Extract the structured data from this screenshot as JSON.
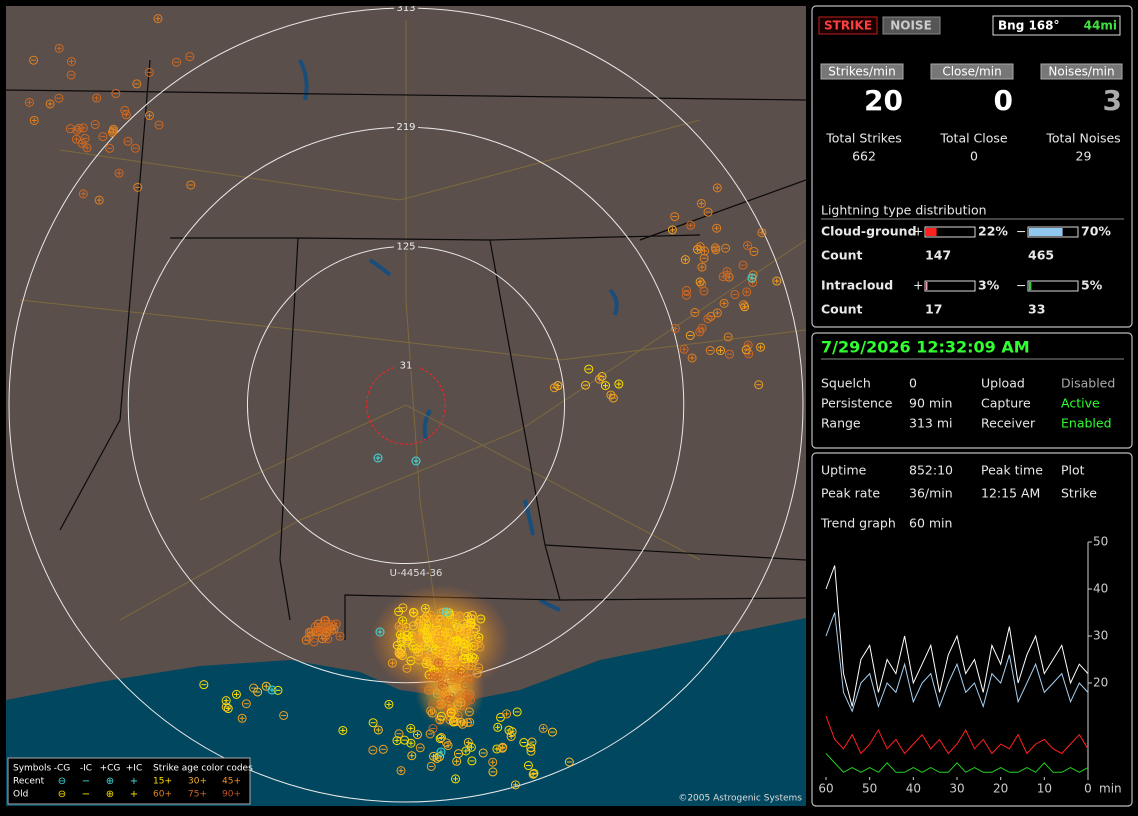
{
  "map": {
    "rings": [
      313,
      219,
      125,
      31
    ],
    "station_label": "U-4454-36",
    "legend": {
      "symbols_title": "Symbols",
      "columns": [
        "-CG",
        "-IC",
        "+CG",
        "+IC"
      ],
      "age_title": "Strike age color codes",
      "rows": [
        {
          "label": "Recent",
          "ages": [
            "15+",
            "30+",
            "45+"
          ]
        },
        {
          "label": "Old",
          "ages": [
            "60+",
            "75+",
            "90+"
          ]
        }
      ]
    },
    "copyright": "©2005 Astrogenic Systems"
  },
  "header": {
    "strike_button": "STRIKE",
    "noise_button": "NOISE",
    "bearing": "Bng 168°",
    "distance": "44mi"
  },
  "rates": [
    {
      "label": "Strikes/min",
      "value": 20,
      "total_label": "Total Strikes",
      "total": 662
    },
    {
      "label": "Close/min",
      "value": 0,
      "total_label": "Total Close",
      "total": 0
    },
    {
      "label": "Noises/min",
      "value": 3,
      "total_label": "Total Noises",
      "total": 29
    }
  ],
  "distribution": {
    "title": "Lightning type distribution",
    "rows": [
      {
        "label": "Cloud-ground",
        "pos_sign": "+",
        "pos": {
          "value": 22,
          "label": "22%"
        },
        "neg_sign": "−",
        "neg": {
          "value": 70,
          "label": "70%"
        },
        "count_label": "Count",
        "pos_count": 147,
        "neg_count": 465
      },
      {
        "label": "Intracloud",
        "pos_sign": "+",
        "pos": {
          "value": 3,
          "label": "3%"
        },
        "neg_sign": "−",
        "neg": {
          "value": 5,
          "label": "5%"
        },
        "count_label": "Count",
        "pos_count": 17,
        "neg_count": 33
      }
    ]
  },
  "status": {
    "datetime": "7/29/2026 12:32:09 AM",
    "rows": [
      [
        "Squelch",
        "0",
        "Upload",
        "Disabled"
      ],
      [
        "Persistence",
        "90 min",
        "Capture",
        "Active"
      ],
      [
        "Range",
        "313 mi",
        "Receiver",
        "Enabled"
      ]
    ]
  },
  "stats": {
    "rows": [
      [
        "Uptime",
        "852:10",
        "Peak time",
        "Plot"
      ],
      [
        "Peak rate",
        "36/min",
        "12:15 AM",
        "Strike"
      ]
    ],
    "trend_label": "Trend graph",
    "trend_value": "60 min"
  },
  "trend": {
    "type": "line",
    "x": [
      60,
      58,
      56,
      54,
      52,
      50,
      48,
      46,
      44,
      42,
      40,
      38,
      36,
      34,
      32,
      30,
      28,
      26,
      24,
      22,
      20,
      18,
      16,
      14,
      12,
      10,
      8,
      6,
      4,
      2,
      0
    ],
    "xlim": [
      60,
      0
    ],
    "xticks": [
      60,
      50,
      40,
      30,
      20,
      10,
      0
    ],
    "x_unit": "min",
    "ylim": [
      0,
      50
    ],
    "yticks": [
      20,
      30,
      40,
      50
    ],
    "series": [
      {
        "color": "#ffffff",
        "values": [
          40,
          45,
          22,
          15,
          25,
          28,
          18,
          25,
          22,
          30,
          20,
          24,
          28,
          18,
          26,
          30,
          22,
          25,
          18,
          28,
          24,
          32,
          20,
          26,
          30,
          22,
          25,
          28,
          20,
          24,
          22
        ]
      },
      {
        "color": "#a8d0f0",
        "values": [
          30,
          35,
          18,
          14,
          20,
          22,
          15,
          20,
          18,
          24,
          16,
          20,
          22,
          15,
          20,
          24,
          18,
          20,
          15,
          22,
          20,
          26,
          16,
          20,
          24,
          18,
          20,
          22,
          16,
          20,
          18
        ]
      },
      {
        "color": "#ff2020",
        "values": [
          13,
          8,
          6,
          9,
          5,
          7,
          10,
          6,
          8,
          5,
          7,
          9,
          6,
          8,
          5,
          7,
          10,
          6,
          8,
          5,
          7,
          6,
          9,
          5,
          7,
          8,
          6,
          5,
          7,
          9,
          6
        ]
      },
      {
        "color": "#20d020",
        "values": [
          5,
          3,
          1,
          2,
          1,
          2,
          1,
          3,
          1,
          1,
          2,
          1,
          2,
          1,
          1,
          3,
          1,
          2,
          1,
          1,
          2,
          1,
          1,
          2,
          1,
          3,
          1,
          1,
          2,
          1,
          2
        ]
      }
    ]
  }
}
